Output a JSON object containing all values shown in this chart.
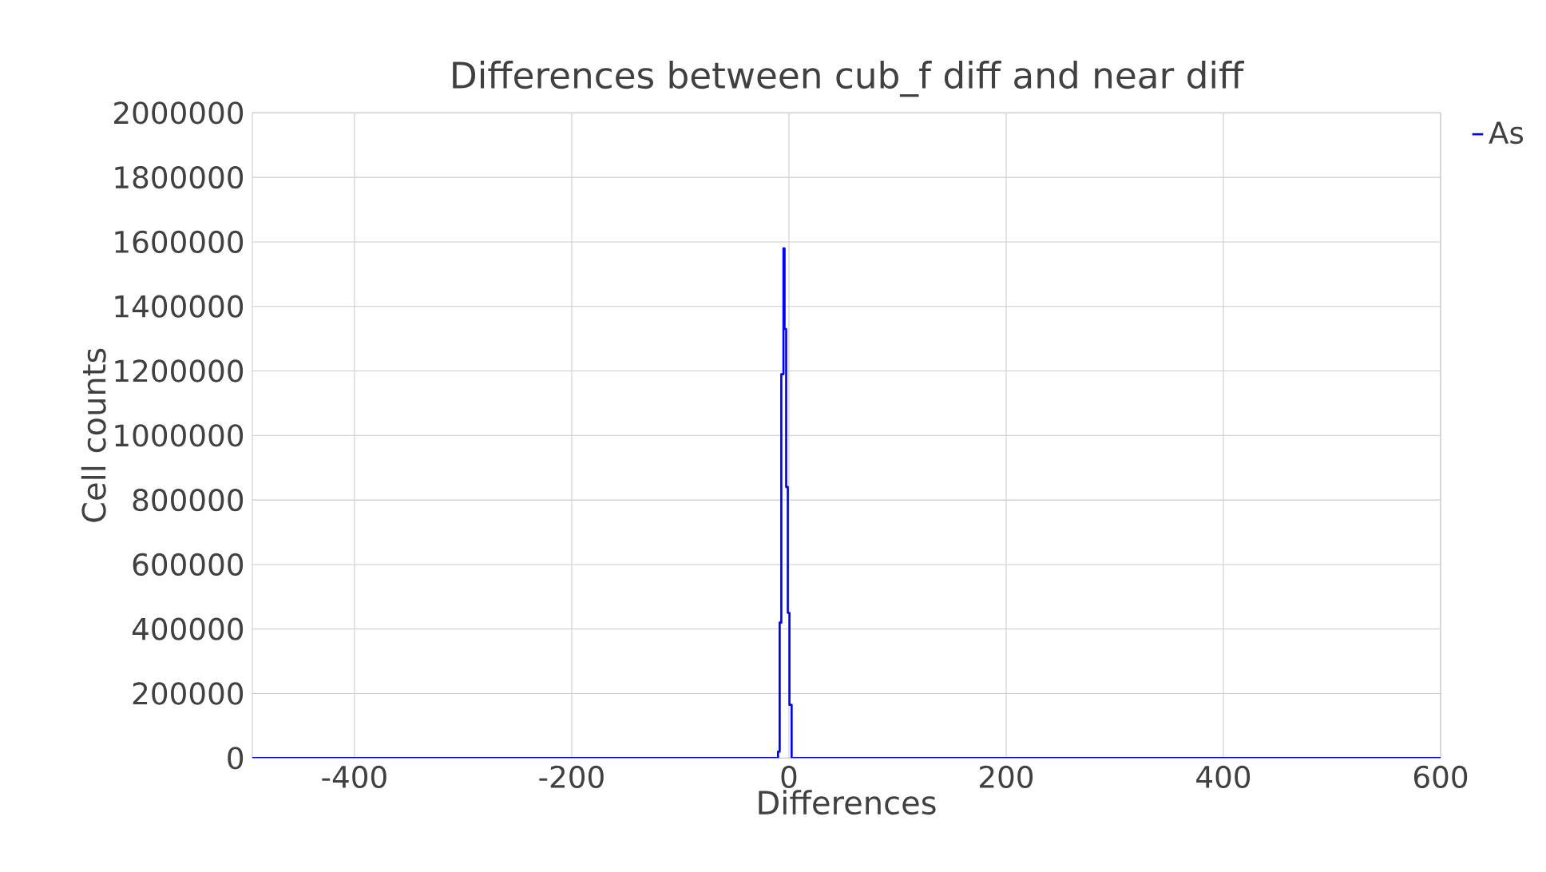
{
  "chart_data": {
    "type": "step",
    "title": "Differences between cub_f diff and near diff",
    "xlabel": "Differences",
    "ylabel": "Cell counts",
    "x": [
      -494,
      -12,
      -10,
      -8.5,
      -7,
      -5,
      -4,
      -2.5,
      -1,
      0.5,
      2.5,
      600
    ],
    "series": [
      {
        "name": "As",
        "color": "#0000ff",
        "values": [
          0,
          0,
          20000,
          420000,
          1190000,
          1580000,
          1330000,
          840000,
          450000,
          165000,
          0,
          0
        ]
      }
    ],
    "xlim": [
      -494,
      600
    ],
    "ylim": [
      0,
      2000000
    ],
    "xticks": [
      -400,
      -200,
      0,
      200,
      400,
      600
    ],
    "yticks": [
      0,
      200000,
      400000,
      600000,
      800000,
      1000000,
      1200000,
      1400000,
      1600000,
      1800000,
      2000000
    ],
    "grid": true,
    "legend": "top right",
    "marker": "none",
    "line_style": "solid"
  }
}
